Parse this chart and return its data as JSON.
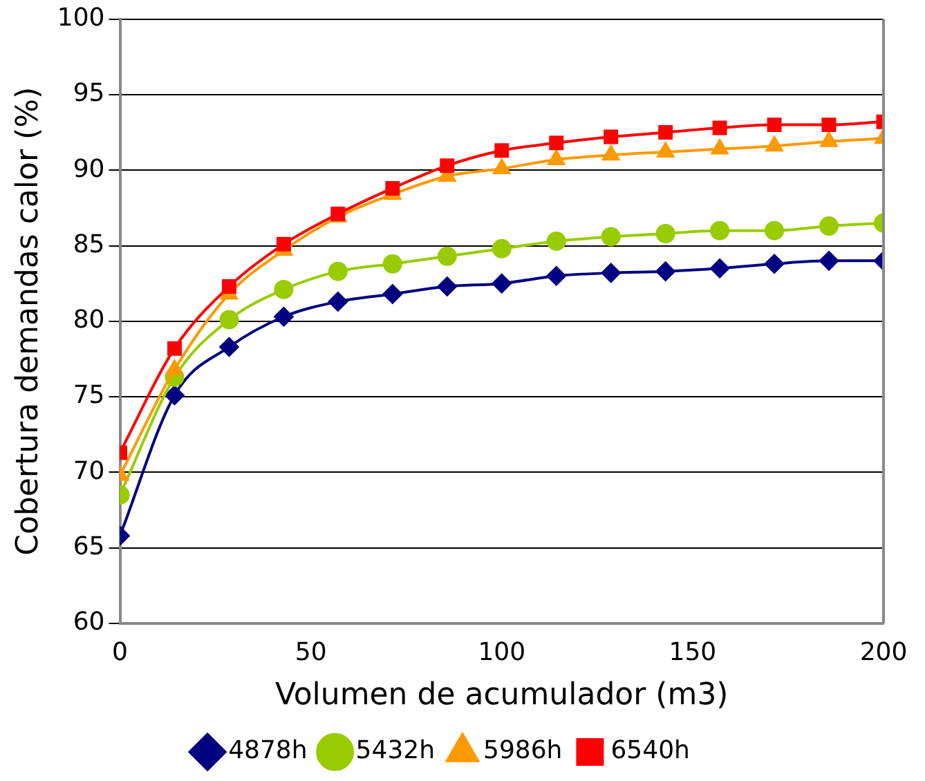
{
  "chart_data": {
    "type": "line",
    "xlabel": "Volumen de acumulador (m3)",
    "ylabel": "Cobertura demandas calor (%)",
    "x": [
      0,
      14.3,
      28.6,
      42.9,
      57.1,
      71.4,
      85.7,
      100,
      114.3,
      128.6,
      142.9,
      157.1,
      171.4,
      185.7,
      200
    ],
    "series": [
      {
        "name": "4878h",
        "color": "#000080",
        "marker": "diamond",
        "values": [
          65.8,
          75.1,
          78.3,
          80.3,
          81.3,
          81.8,
          82.3,
          82.5,
          83,
          83.2,
          83.3,
          83.5,
          83.8,
          84,
          84
        ]
      },
      {
        "name": "5432h",
        "color": "#99cc00",
        "marker": "circle",
        "values": [
          68.5,
          76.3,
          80.1,
          82.1,
          83.3,
          83.8,
          84.3,
          84.8,
          85.3,
          85.6,
          85.8,
          86,
          86,
          86.3,
          86.5
        ]
      },
      {
        "name": "5986h",
        "color": "#ff9900",
        "marker": "triangle",
        "values": [
          69.8,
          76.8,
          81.8,
          84.7,
          86.9,
          88.4,
          89.6,
          90.1,
          90.7,
          91,
          91.2,
          91.4,
          91.6,
          91.9,
          92.1
        ]
      },
      {
        "name": "6540h",
        "color": "#ff0000",
        "marker": "square",
        "values": [
          71.3,
          78.2,
          82.3,
          85.1,
          87.1,
          88.8,
          90.3,
          91.3,
          91.8,
          92.2,
          92.5,
          92.8,
          93,
          93,
          93.2
        ]
      }
    ],
    "xlim": [
      0,
      200
    ],
    "xticks": [
      0,
      50,
      100,
      150,
      200
    ],
    "ylim": [
      60,
      100
    ],
    "yticks": [
      60,
      65,
      70,
      75,
      80,
      85,
      90,
      95,
      100
    ],
    "grid": "y",
    "legend": "bottom"
  }
}
